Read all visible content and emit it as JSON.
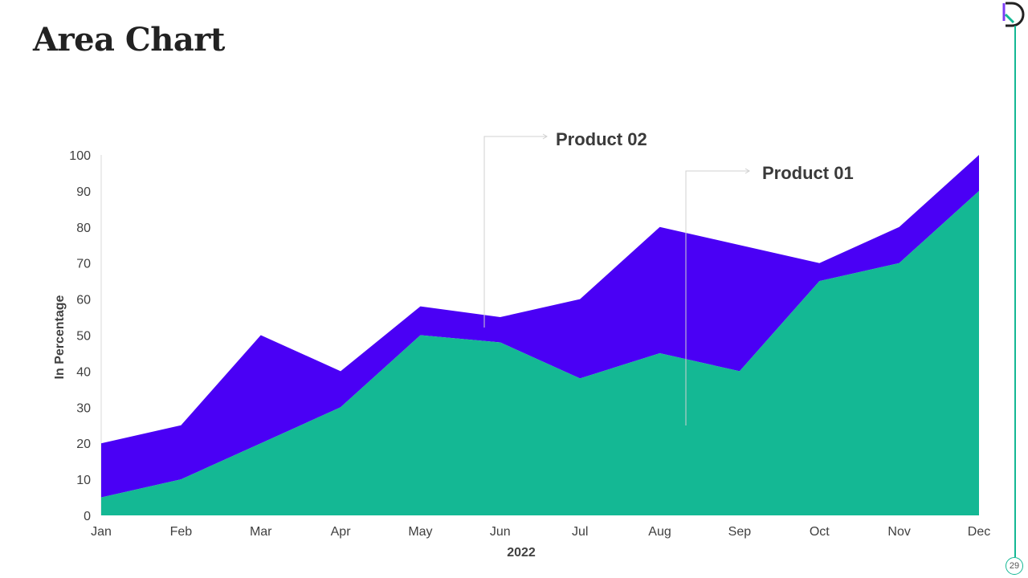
{
  "title": "Area Chart",
  "page_number": "29",
  "colors": {
    "product01": "#14b894",
    "product02": "#4a00f5",
    "accent_line": "#14b894",
    "logo_purple": "#7b3cf5",
    "logo_dark": "#222222"
  },
  "chart_data": {
    "type": "area",
    "stacked": true,
    "title": "",
    "xlabel": "2022",
    "ylabel": "In Percentage",
    "ylim": [
      0,
      100
    ],
    "yticks": [
      0,
      10,
      20,
      30,
      40,
      50,
      60,
      70,
      80,
      90,
      100
    ],
    "categories": [
      "Jan",
      "Feb",
      "Mar",
      "Apr",
      "May",
      "Jun",
      "Jul",
      "Aug",
      "Sep",
      "Oct",
      "Nov",
      "Dec"
    ],
    "series": [
      {
        "name": "Product 01",
        "values": [
          5,
          10,
          20,
          30,
          50,
          48,
          38,
          45,
          40,
          65,
          70,
          90
        ]
      },
      {
        "name": "Product 02",
        "values": [
          15,
          15,
          30,
          10,
          8,
          7,
          22,
          35,
          35,
          5,
          10,
          10
        ]
      }
    ],
    "annotations": [
      {
        "text": "Product 02",
        "series": "Product 02",
        "category": "Jun"
      },
      {
        "text": "Product 01",
        "series": "Product 01",
        "category": "Aug"
      }
    ]
  }
}
